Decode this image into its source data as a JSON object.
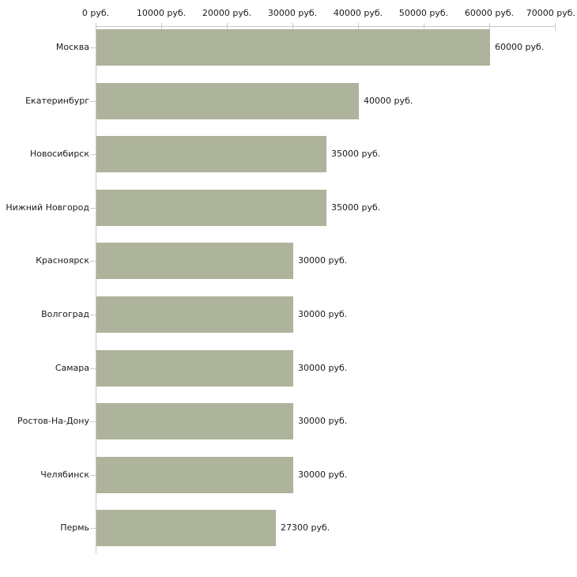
{
  "chart_data": {
    "type": "bar",
    "orientation": "horizontal",
    "title": "",
    "xlabel": "",
    "ylabel": "",
    "categories": [
      "Москва",
      "Екатеринбург",
      "Новосибирск",
      "Нижний Новгород",
      "Красноярск",
      "Волгоград",
      "Самара",
      "Ростов-На-Дону",
      "Челябинск",
      "Пермь"
    ],
    "values": [
      60000,
      40000,
      35000,
      35000,
      30000,
      30000,
      30000,
      30000,
      30000,
      27300
    ],
    "value_labels": [
      "60000 руб.",
      "40000 руб.",
      "35000 руб.",
      "35000 руб.",
      "30000 руб.",
      "30000 руб.",
      "30000 руб.",
      "30000 руб.",
      "30000 руб.",
      "27300 руб."
    ],
    "unit": "руб.",
    "xlim": [
      0,
      70000
    ],
    "x_ticks": [
      0,
      10000,
      20000,
      30000,
      40000,
      50000,
      60000,
      70000
    ],
    "x_tick_labels": [
      "0 руб.",
      "10000 руб.",
      "20000 руб.",
      "30000 руб.",
      "40000 руб.",
      "50000 руб.",
      "60000 руб.",
      "70000 руб."
    ],
    "grid": false,
    "legend": false,
    "axis_position": "top-left",
    "colors": {
      "bar": "#aeb39b",
      "axis_line": "#c6c6c6",
      "tick": "#cfd0ad",
      "text": "#1a1a1a",
      "background": "#ffffff"
    }
  }
}
